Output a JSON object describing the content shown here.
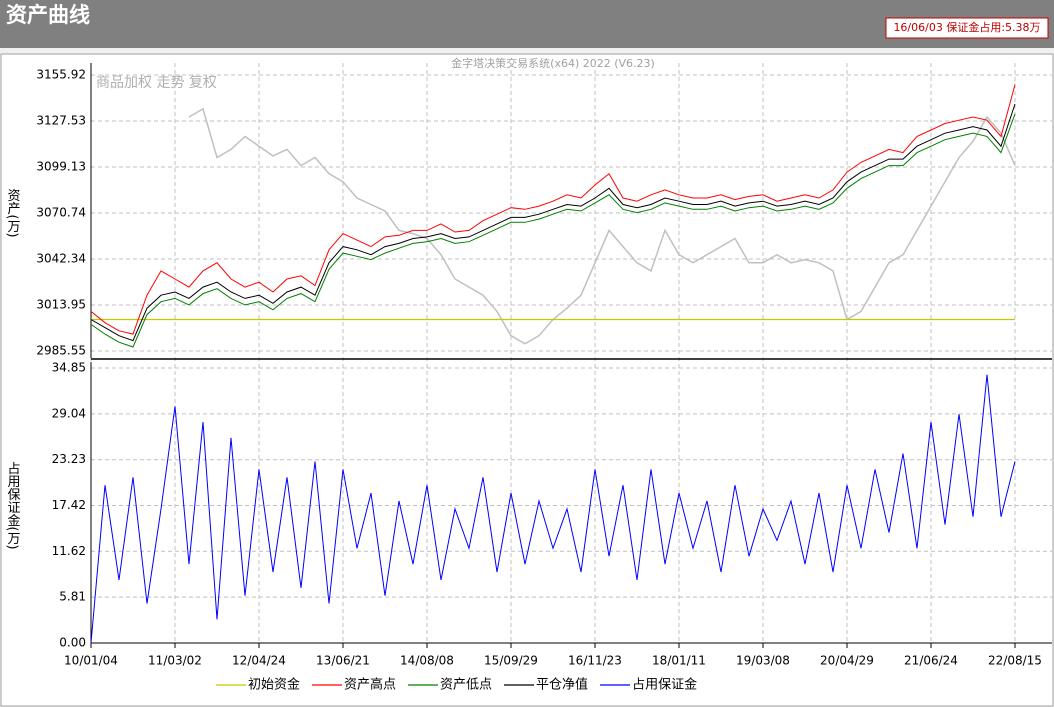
{
  "window_title": "资产曲线",
  "info": "16/06/03 保证金占用:5.38万",
  "chart_data": {
    "type": "line",
    "title": "金字塔决策交易系统(x64) 2022 (V6.23)",
    "grid": true,
    "categories": [
      "10/01/04",
      null,
      null,
      null,
      null,
      null,
      "11/03/02",
      null,
      null,
      null,
      null,
      null,
      "12/04/24",
      null,
      null,
      null,
      null,
      null,
      "13/06/21",
      null,
      null,
      null,
      null,
      null,
      "14/08/08",
      null,
      null,
      null,
      null,
      null,
      "15/09/29",
      null,
      null,
      null,
      null,
      null,
      "16/11/23",
      null,
      null,
      null,
      null,
      null,
      "18/01/11",
      null,
      null,
      null,
      null,
      null,
      "19/03/08",
      null,
      null,
      null,
      null,
      null,
      "20/04/29",
      null,
      null,
      null,
      null,
      null,
      "21/06/24",
      null,
      null,
      null,
      null,
      null,
      "22/08/15"
    ],
    "panels": [
      {
        "ylabel": "资产(万)",
        "ylim": [
          2985.55,
          3155.92
        ],
        "yticks": [
          2985.55,
          3013.95,
          3042.34,
          3070.74,
          3099.13,
          3127.53,
          3155.92
        ],
        "baseline": {
          "name": "初始资金",
          "color": "#c8c800",
          "value": 3005
        },
        "reference": {
          "label": "商品加权  走势  复权",
          "color": "#c0c0c0",
          "values": [
            null,
            null,
            null,
            null,
            null,
            null,
            null,
            3130,
            3135,
            3105,
            3110,
            3118,
            3112,
            3106,
            3110,
            3100,
            3105,
            3095,
            3090,
            3080,
            3076,
            3072,
            3060,
            3058,
            3055,
            3045,
            3030,
            3025,
            3020,
            3010,
            2995,
            2990,
            2995,
            3005,
            3012,
            3020,
            3040,
            3060,
            3050,
            3040,
            3035,
            3060,
            3045,
            3040,
            3045,
            3050,
            3055,
            3040,
            3040,
            3045,
            3040,
            3042,
            3040,
            3035,
            3005,
            3010,
            3025,
            3040,
            3045,
            3060,
            3075,
            3090,
            3105,
            3115,
            3130,
            3120,
            3100
          ]
        },
        "series": [
          {
            "name": "资产高点",
            "color": "#ff0000",
            "values": [
              3010,
              3003,
              2998,
              2996,
              3020,
              3035,
              3030,
              3025,
              3035,
              3040,
              3030,
              3025,
              3028,
              3022,
              3030,
              3032,
              3026,
              3048,
              3058,
              3054,
              3050,
              3056,
              3057,
              3060,
              3060,
              3064,
              3059,
              3060,
              3066,
              3070,
              3074,
              3073,
              3075,
              3078,
              3082,
              3080,
              3088,
              3095,
              3080,
              3078,
              3082,
              3085,
              3082,
              3080,
              3080,
              3082,
              3079,
              3081,
              3082,
              3078,
              3080,
              3082,
              3080,
              3085,
              3096,
              3102,
              3106,
              3110,
              3108,
              3118,
              3122,
              3126,
              3128,
              3130,
              3128,
              3118,
              3150
            ]
          },
          {
            "name": "资产低点",
            "color": "#008000",
            "values": [
              3002,
              2996,
              2991,
              2988,
              3008,
              3016,
              3018,
              3014,
              3021,
              3024,
              3018,
              3014,
              3016,
              3011,
              3018,
              3021,
              3016,
              3036,
              3046,
              3044,
              3042,
              3046,
              3049,
              3052,
              3053,
              3055,
              3052,
              3053,
              3057,
              3061,
              3065,
              3065,
              3067,
              3070,
              3073,
              3072,
              3077,
              3082,
              3073,
              3071,
              3073,
              3077,
              3075,
              3073,
              3073,
              3075,
              3072,
              3074,
              3075,
              3072,
              3073,
              3075,
              3073,
              3077,
              3086,
              3092,
              3096,
              3100,
              3100,
              3108,
              3112,
              3116,
              3118,
              3120,
              3118,
              3108,
              3132
            ]
          },
          {
            "name": "平仓净值",
            "color": "#000000",
            "values": [
              3005,
              3000,
              2995,
              2992,
              3012,
              3020,
              3022,
              3018,
              3025,
              3028,
              3022,
              3018,
              3020,
              3015,
              3022,
              3025,
              3020,
              3040,
              3050,
              3048,
              3045,
              3050,
              3052,
              3055,
              3056,
              3058,
              3055,
              3056,
              3060,
              3064,
              3068,
              3068,
              3070,
              3073,
              3076,
              3075,
              3080,
              3086,
              3076,
              3074,
              3076,
              3080,
              3078,
              3076,
              3076,
              3078,
              3075,
              3077,
              3078,
              3075,
              3076,
              3078,
              3076,
              3080,
              3090,
              3096,
              3100,
              3104,
              3104,
              3112,
              3116,
              3120,
              3122,
              3124,
              3122,
              3112,
              3138
            ]
          }
        ]
      },
      {
        "ylabel": "占用保证金(万)",
        "ylim": [
          0,
          34.85
        ],
        "yticks": [
          {
            "value": 0,
            "label": "0.00"
          },
          5.81,
          11.62,
          17.42,
          23.23,
          29.04,
          34.85
        ],
        "series": [
          {
            "name": "占用保证金",
            "color": "#0000ff",
            "values": [
              0,
              20,
              8,
              21,
              5,
              17,
              30,
              10,
              28,
              3,
              26,
              6,
              22,
              9,
              21,
              7,
              23,
              5,
              22,
              12,
              19,
              6,
              18,
              10,
              20,
              8,
              17,
              12,
              21,
              9,
              19,
              10,
              18,
              12,
              17,
              9,
              22,
              11,
              20,
              8,
              22,
              10,
              19,
              12,
              18,
              9,
              20,
              11,
              17,
              13,
              18,
              10,
              19,
              9,
              20,
              12,
              22,
              14,
              24,
              12,
              28,
              15,
              29,
              16,
              34,
              16,
              23
            ]
          }
        ]
      }
    ]
  }
}
